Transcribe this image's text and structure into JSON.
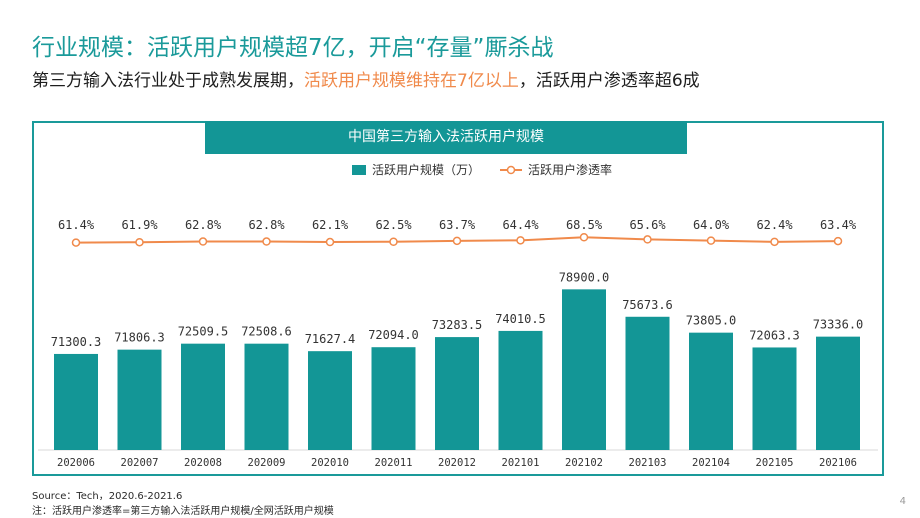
{
  "header": {
    "title": "行业规模：活跃用户规模超7亿，开启“存量”厮杀战",
    "subtitle_part1": "第三方输入法行业处于成熟发展期，",
    "subtitle_highlight": "活跃用户规模维持在7亿以上",
    "subtitle_part2": "，活跃用户渗透率超6成"
  },
  "colors": {
    "bar": "#139696",
    "line": "#f08a4b",
    "accent": "#1a9a9a"
  },
  "chart_data": {
    "type": "bar",
    "title": "中国第三方输入法活跃用户规模",
    "categories": [
      "202006",
      "202007",
      "202008",
      "202009",
      "202010",
      "202011",
      "202012",
      "202101",
      "202102",
      "202103",
      "202104",
      "202105",
      "202106"
    ],
    "series": [
      {
        "name": "活跃用户规模（万）",
        "type": "bar",
        "values": [
          71300.3,
          71806.3,
          72509.5,
          72508.6,
          71627.4,
          72094.0,
          73283.5,
          74010.5,
          78900.0,
          75673.6,
          73805.0,
          72063.3,
          73336.0
        ],
        "labels": [
          "71300.3",
          "71806.3",
          "72509.5",
          "72508.6",
          "71627.4",
          "72094.0",
          "73283.5",
          "74010.5",
          "78900.0",
          "75673.6",
          "73805.0",
          "72063.3",
          "73336.0"
        ]
      },
      {
        "name": "活跃用户渗透率",
        "type": "line",
        "values": [
          61.4,
          61.9,
          62.8,
          62.8,
          62.1,
          62.5,
          63.7,
          64.4,
          68.5,
          65.6,
          64.0,
          62.4,
          63.4
        ],
        "labels": [
          "61.4%",
          "61.9%",
          "62.8%",
          "62.8%",
          "62.1%",
          "62.5%",
          "63.7%",
          "64.4%",
          "68.5%",
          "65.6%",
          "64.0%",
          "62.4%",
          "63.4%"
        ]
      }
    ],
    "legend_position": "top"
  },
  "footer": {
    "source": "Source：Tech，2020.6-2021.6",
    "note": "注：活跃用户渗透率=第三方输入法活跃用户规模/全网活跃用户规模",
    "page_number": "4"
  }
}
